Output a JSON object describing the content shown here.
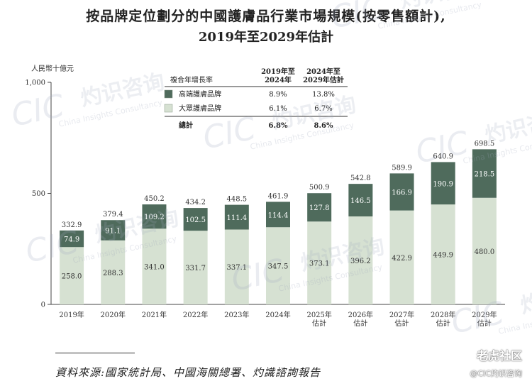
{
  "title": {
    "line1": "按品牌定位劃分的中國護膚品行業市場規模(按零售額計),",
    "line2": "2019年至2029年估計"
  },
  "chart_data": {
    "type": "bar",
    "stacked": true,
    "ylabel": "人民幣十億元",
    "ylim": [
      0,
      1000
    ],
    "yticks": [
      0,
      500,
      1000
    ],
    "ytick_labels": [
      "0",
      "500",
      "1,000"
    ],
    "categories": [
      "2019年",
      "2020年",
      "2021年",
      "2022年",
      "2023年",
      "2024年",
      "2025年\n估計",
      "2026年\n估計",
      "2027年\n估計",
      "2028年\n估計",
      "2029年\n估計"
    ],
    "series": [
      {
        "name": "大眾護膚品牌",
        "color": "#d6e1d2",
        "values": [
          258.0,
          288.3,
          341.0,
          331.7,
          337.1,
          347.5,
          373.1,
          396.2,
          422.9,
          449.9,
          480.0
        ]
      },
      {
        "name": "高端護膚品牌",
        "color": "#4f6b5c",
        "values": [
          74.9,
          91.1,
          109.2,
          102.5,
          111.4,
          114.4,
          127.8,
          146.5,
          166.9,
          190.9,
          218.5
        ]
      }
    ],
    "totals": [
      332.9,
      379.4,
      450.2,
      434.2,
      448.5,
      461.9,
      500.9,
      542.8,
      589.9,
      640.9,
      698.5
    ],
    "value_labels_mass": [
      "258.0",
      "288.3",
      "341.0",
      "331.7",
      "337.1",
      "347.5",
      "373.1",
      "396.2",
      "422.9",
      "449.9",
      "480.0"
    ],
    "value_labels_premium": [
      "74.9",
      "91.1",
      "109.2",
      "102.5",
      "111.4",
      "114.4",
      "127.8",
      "146.5",
      "166.9",
      "190.9",
      "218.5"
    ],
    "total_labels": [
      "332.9",
      "379.4",
      "450.2",
      "434.2",
      "448.5",
      "461.9",
      "500.9",
      "542.8",
      "589.9",
      "640.9",
      "698.5"
    ],
    "grid": false,
    "legend_placement": "top-left"
  },
  "cagr_table": {
    "header_label": "複合年增長率",
    "col1": "2019年至\n2024年",
    "col2": "2024年至\n2029年估計",
    "rows": [
      {
        "name": "高端護膚品牌",
        "v1": "8.9%",
        "v2": "13.8%",
        "color": "#4f6b5c"
      },
      {
        "name": "大眾護膚品牌",
        "v1": "6.1%",
        "v2": "6.7%",
        "color": "#d6e1d2"
      }
    ],
    "total": {
      "name": "總計",
      "v1": "6.8%",
      "v2": "8.6%"
    }
  },
  "source": "資料來源:國家統計局、中國海關總署、灼識諮詢報告",
  "watermark": {
    "brand": "CIC",
    "cn": "灼识咨询",
    "en": "China Insights Consultancy"
  },
  "badge": {
    "line1": "老虎社区",
    "line2": "@CIC灼识咨询"
  }
}
